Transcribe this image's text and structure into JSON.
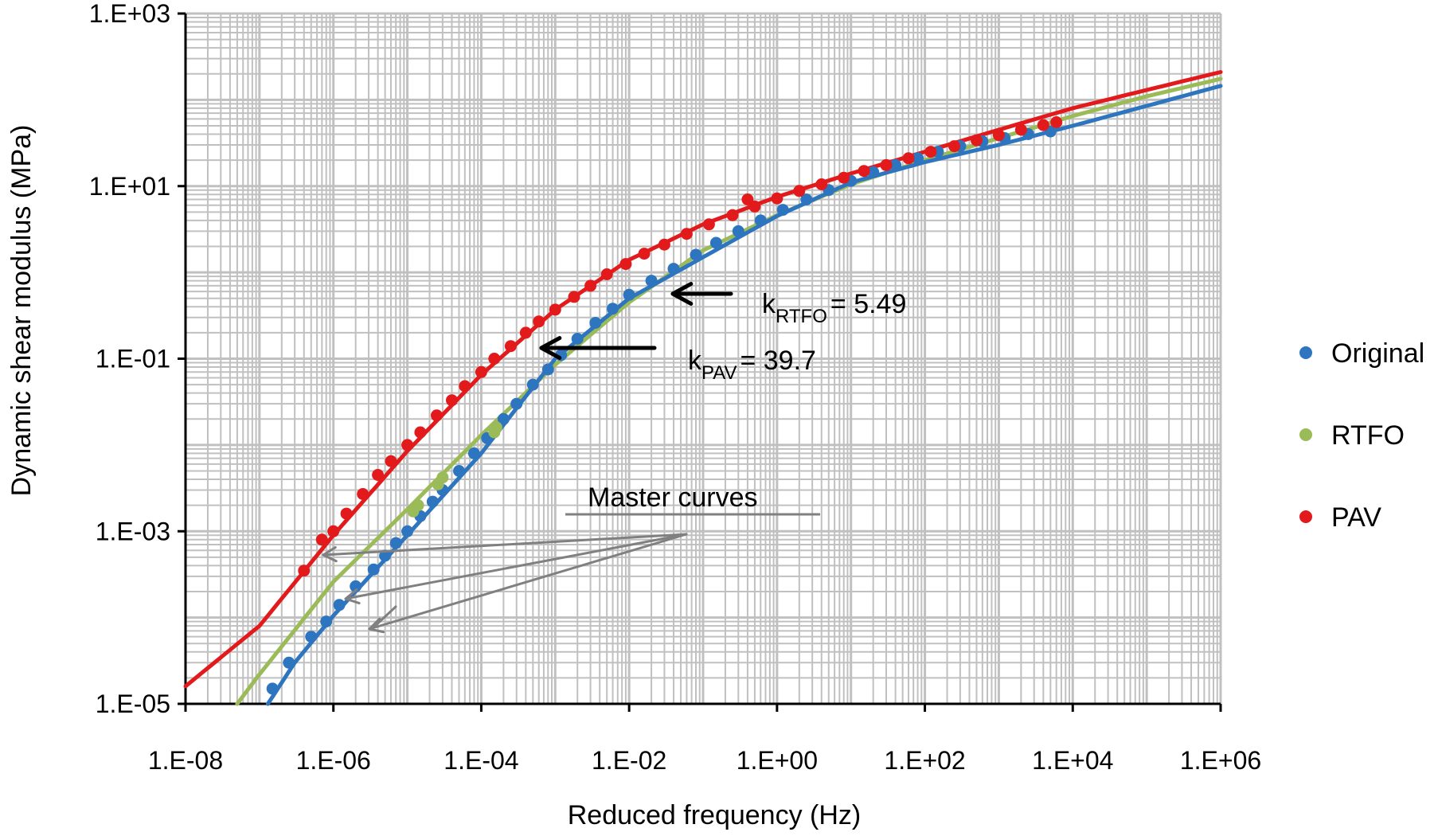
{
  "chart_data": {
    "type": "scatter",
    "title": "",
    "xlabel": "Reduced frequency (Hz)",
    "ylabel": "Dynamic shear modulus (MPa)",
    "x_scale": "log",
    "y_scale": "log",
    "xlim": [
      1e-08,
      1000000.0
    ],
    "ylim": [
      1e-05,
      1000.0
    ],
    "grid": true,
    "x_ticks": [
      1e-08,
      1e-06,
      0.0001,
      0.01,
      1,
      100,
      10000,
      1000000
    ],
    "x_tick_labels": [
      "1.E-08",
      "1.E-06",
      "1.E-04",
      "1.E-02",
      "1.E+00",
      "1.E+02",
      "1.E+04",
      "1.E+06"
    ],
    "y_ticks": [
      1e-05,
      0.001,
      0.1,
      10,
      1000
    ],
    "y_tick_labels": [
      "1.E-05",
      "1.E-03",
      "1.E-01",
      "1.E+01",
      "1.E+03"
    ],
    "legend_position": "right",
    "series": [
      {
        "name": "Original",
        "color": "#2e75c0",
        "points": [
          [
            1.5e-07,
            1.5e-05
          ],
          [
            2.5e-07,
            3e-05
          ],
          [
            5e-07,
            6e-05
          ],
          [
            8e-07,
            9e-05
          ],
          [
            1.2e-06,
            0.00014
          ],
          [
            2e-06,
            0.00023
          ],
          [
            3.5e-06,
            0.00036
          ],
          [
            5e-06,
            0.00052
          ],
          [
            7e-06,
            0.00073
          ],
          [
            1e-05,
            0.001
          ],
          [
            1.5e-05,
            0.0015
          ],
          [
            2.2e-05,
            0.0022
          ],
          [
            3e-05,
            0.003
          ],
          [
            5e-05,
            0.005
          ],
          [
            8e-05,
            0.008
          ],
          [
            0.00012,
            0.012
          ],
          [
            0.0002,
            0.02
          ],
          [
            0.0003,
            0.03
          ],
          [
            0.0005,
            0.05
          ],
          [
            0.0008,
            0.075
          ],
          [
            0.0012,
            0.11
          ],
          [
            0.002,
            0.17
          ],
          [
            0.0035,
            0.26
          ],
          [
            0.006,
            0.38
          ],
          [
            0.01,
            0.55
          ],
          [
            0.02,
            0.8
          ],
          [
            0.04,
            1.1
          ],
          [
            0.08,
            1.6
          ],
          [
            0.15,
            2.2
          ],
          [
            0.3,
            3.0
          ],
          [
            0.6,
            4.0
          ],
          [
            1.2,
            5.3
          ],
          [
            2.5,
            7.0
          ],
          [
            5,
            9.0
          ],
          [
            10,
            11.5
          ],
          [
            20,
            14.5
          ],
          [
            40,
            17.5
          ],
          [
            80,
            21
          ],
          [
            150,
            25
          ],
          [
            300,
            29
          ],
          [
            600,
            33
          ],
          [
            1200,
            36
          ],
          [
            2500,
            40
          ],
          [
            5000,
            43
          ]
        ]
      },
      {
        "name": "RTFO",
        "color": "#9bbb59",
        "points": [
          [
            1.2e-05,
            0.0017
          ],
          [
            1.4e-05,
            0.002
          ],
          [
            2.6e-05,
            0.0035
          ],
          [
            3e-05,
            0.0042
          ],
          [
            0.00015,
            0.014
          ],
          [
            0.00016,
            0.016
          ]
        ]
      },
      {
        "name": "PAV",
        "color": "#e31a1c",
        "points": [
          [
            4e-07,
            0.00035
          ],
          [
            7e-07,
            0.0008
          ],
          [
            1e-06,
            0.001
          ],
          [
            1.5e-06,
            0.0016
          ],
          [
            2.5e-06,
            0.0027
          ],
          [
            4e-06,
            0.0045
          ],
          [
            6e-06,
            0.0065
          ],
          [
            1e-05,
            0.01
          ],
          [
            1.5e-05,
            0.014
          ],
          [
            2.5e-05,
            0.022
          ],
          [
            4e-05,
            0.033
          ],
          [
            6e-05,
            0.048
          ],
          [
            0.0001,
            0.07
          ],
          [
            0.00015,
            0.1
          ],
          [
            0.00025,
            0.14
          ],
          [
            0.0004,
            0.2
          ],
          [
            0.0006,
            0.27
          ],
          [
            0.001,
            0.37
          ],
          [
            0.0018,
            0.52
          ],
          [
            0.003,
            0.7
          ],
          [
            0.005,
            0.95
          ],
          [
            0.009,
            1.25
          ],
          [
            0.016,
            1.65
          ],
          [
            0.03,
            2.1
          ],
          [
            0.06,
            2.8
          ],
          [
            0.12,
            3.6
          ],
          [
            0.25,
            4.6
          ],
          [
            0.4,
            7.0
          ],
          [
            0.5,
            5.8
          ],
          [
            1,
            7.2
          ],
          [
            2,
            8.8
          ],
          [
            4,
            10.5
          ],
          [
            8,
            12.5
          ],
          [
            15,
            15
          ],
          [
            30,
            17.5
          ],
          [
            60,
            21
          ],
          [
            120,
            25
          ],
          [
            250,
            29
          ],
          [
            500,
            34
          ],
          [
            1000,
            39
          ],
          [
            2000,
            45
          ],
          [
            4000,
            51
          ],
          [
            6000,
            55
          ]
        ]
      }
    ],
    "curves": [
      {
        "name": "PAV",
        "color": "#e31a1c",
        "points": [
          [
            1e-08,
            1.6e-05
          ],
          [
            1e-07,
            8e-05
          ],
          [
            1e-06,
            0.0009
          ],
          [
            1e-05,
            0.0085
          ],
          [
            0.0001,
            0.065
          ],
          [
            0.001,
            0.37
          ],
          [
            0.01,
            1.4
          ],
          [
            0.1,
            3.6
          ],
          [
            1,
            7.5
          ],
          [
            10,
            14
          ],
          [
            100,
            25
          ],
          [
            1000,
            45
          ],
          [
            10000,
            80
          ],
          [
            100000,
            130
          ],
          [
            1000000,
            210
          ]
        ]
      },
      {
        "name": "RTFO",
        "color": "#9bbb59",
        "points": [
          [
            5e-08,
            1e-05
          ],
          [
            1e-07,
            2.2e-05
          ],
          [
            1e-06,
            0.00026
          ],
          [
            1e-05,
            0.0018
          ],
          [
            0.0001,
            0.013
          ],
          [
            0.001,
            0.085
          ],
          [
            0.01,
            0.45
          ],
          [
            0.1,
            1.8
          ],
          [
            1,
            4.6
          ],
          [
            10,
            10.5
          ],
          [
            100,
            20
          ],
          [
            1000,
            36
          ],
          [
            10000,
            65
          ],
          [
            100000,
            110
          ],
          [
            1000000,
            175
          ]
        ]
      },
      {
        "name": "Original",
        "color": "#2e75c0",
        "points": [
          [
            1.3e-07,
            1e-05
          ],
          [
            3e-07,
            3e-05
          ],
          [
            1e-06,
            0.000105
          ],
          [
            1e-05,
            0.0009
          ],
          [
            0.0001,
            0.008
          ],
          [
            0.001,
            0.1
          ],
          [
            0.01,
            0.5
          ],
          [
            0.1,
            1.5
          ],
          [
            1,
            4.5
          ],
          [
            10,
            11
          ],
          [
            100,
            19
          ],
          [
            1000,
            30
          ],
          [
            10000,
            50
          ],
          [
            100000,
            85
          ],
          [
            1000000,
            145
          ]
        ]
      }
    ],
    "annotations": {
      "k_rtfo": {
        "k": "k",
        "sub": "RTFO",
        "value": "= 5.49"
      },
      "k_pav": {
        "k": "k",
        "sub": "PAV",
        "value": "= 39.7"
      },
      "master_curves": "Master curves",
      "arrow_color": "#000000",
      "pointer_color": "#808080"
    }
  }
}
